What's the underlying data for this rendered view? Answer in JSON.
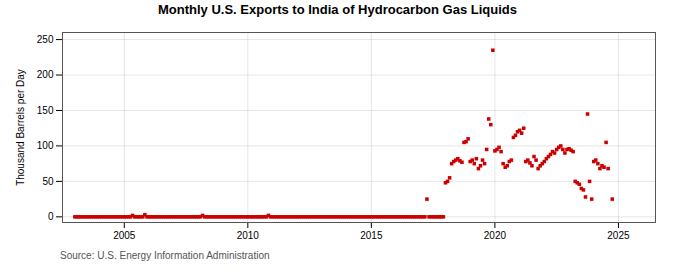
{
  "chart_data": {
    "type": "scatter",
    "title": "Monthly U.S. Exports to India of Hydrocarbon Gas Liquids",
    "ylabel": "Thousand Barrels per Day",
    "annotations": [
      "Source: U.S. Energy Information Administration"
    ],
    "color": "#cc0000",
    "marker": "square",
    "grid": true,
    "xlim": [
      2002.5,
      2026.5
    ],
    "xticks": [
      2005,
      2010,
      2015,
      2020,
      2025
    ],
    "ylim": [
      -8,
      260
    ],
    "yticks": [
      0,
      50,
      100,
      150,
      200,
      250
    ],
    "x": [
      2003.0,
      2003.083,
      2003.167,
      2003.25,
      2003.333,
      2003.417,
      2003.5,
      2003.583,
      2003.667,
      2003.75,
      2003.833,
      2003.917,
      2004.0,
      2004.083,
      2004.167,
      2004.25,
      2004.333,
      2004.417,
      2004.5,
      2004.583,
      2004.667,
      2004.75,
      2004.833,
      2004.917,
      2005.0,
      2005.083,
      2005.167,
      2005.25,
      2005.333,
      2005.417,
      2005.5,
      2005.583,
      2005.667,
      2005.75,
      2005.833,
      2005.917,
      2006.0,
      2006.083,
      2006.167,
      2006.25,
      2006.333,
      2006.417,
      2006.5,
      2006.583,
      2006.667,
      2006.75,
      2006.833,
      2006.917,
      2007.0,
      2007.083,
      2007.167,
      2007.25,
      2007.333,
      2007.417,
      2007.5,
      2007.583,
      2007.667,
      2007.75,
      2007.833,
      2007.917,
      2008.0,
      2008.083,
      2008.167,
      2008.25,
      2008.333,
      2008.417,
      2008.5,
      2008.583,
      2008.667,
      2008.75,
      2008.833,
      2008.917,
      2009.0,
      2009.083,
      2009.167,
      2009.25,
      2009.333,
      2009.417,
      2009.5,
      2009.583,
      2009.667,
      2009.75,
      2009.833,
      2009.917,
      2010.0,
      2010.083,
      2010.167,
      2010.25,
      2010.333,
      2010.417,
      2010.5,
      2010.583,
      2010.667,
      2010.75,
      2010.833,
      2010.917,
      2011.0,
      2011.083,
      2011.167,
      2011.25,
      2011.333,
      2011.417,
      2011.5,
      2011.583,
      2011.667,
      2011.75,
      2011.833,
      2011.917,
      2012.0,
      2012.083,
      2012.167,
      2012.25,
      2012.333,
      2012.417,
      2012.5,
      2012.583,
      2012.667,
      2012.75,
      2012.833,
      2012.917,
      2013.0,
      2013.083,
      2013.167,
      2013.25,
      2013.333,
      2013.417,
      2013.5,
      2013.583,
      2013.667,
      2013.75,
      2013.833,
      2013.917,
      2014.0,
      2014.083,
      2014.167,
      2014.25,
      2014.333,
      2014.417,
      2014.5,
      2014.583,
      2014.667,
      2014.75,
      2014.833,
      2014.917,
      2015.0,
      2015.083,
      2015.167,
      2015.25,
      2015.333,
      2015.417,
      2015.5,
      2015.583,
      2015.667,
      2015.75,
      2015.833,
      2015.917,
      2016.0,
      2016.083,
      2016.167,
      2016.25,
      2016.333,
      2016.417,
      2016.5,
      2016.583,
      2016.667,
      2016.75,
      2016.833,
      2016.917,
      2017.0,
      2017.083,
      2017.167,
      2017.25,
      2017.333,
      2017.417,
      2017.5,
      2017.583,
      2017.667,
      2017.75,
      2017.833,
      2017.917,
      2018.0,
      2018.083,
      2018.167,
      2018.25,
      2018.333,
      2018.417,
      2018.5,
      2018.583,
      2018.667,
      2018.75,
      2018.833,
      2018.917,
      2019.0,
      2019.083,
      2019.167,
      2019.25,
      2019.333,
      2019.417,
      2019.5,
      2019.583,
      2019.667,
      2019.75,
      2019.833,
      2019.917,
      2020.0,
      2020.083,
      2020.167,
      2020.25,
      2020.333,
      2020.417,
      2020.5,
      2020.583,
      2020.667,
      2020.75,
      2020.833,
      2020.917,
      2021.0,
      2021.083,
      2021.167,
      2021.25,
      2021.333,
      2021.417,
      2021.5,
      2021.583,
      2021.667,
      2021.75,
      2021.833,
      2021.917,
      2022.0,
      2022.083,
      2022.167,
      2022.25,
      2022.333,
      2022.417,
      2022.5,
      2022.583,
      2022.667,
      2022.75,
      2022.833,
      2022.917,
      2023.0,
      2023.083,
      2023.167,
      2023.25,
      2023.333,
      2023.417,
      2023.5,
      2023.583,
      2023.667,
      2023.75,
      2023.833,
      2023.917,
      2024.0,
      2024.083,
      2024.167,
      2024.25,
      2024.333,
      2024.417,
      2024.5,
      2024.583,
      2024.75
    ],
    "values": [
      0,
      0,
      0,
      0,
      0,
      0,
      0,
      0,
      0,
      0,
      0,
      0,
      0,
      0,
      0,
      0,
      0,
      0,
      0,
      0,
      0,
      0,
      0,
      0,
      0,
      0,
      0,
      0,
      2,
      0,
      0,
      0,
      0,
      0,
      3,
      0,
      0,
      0,
      0,
      0,
      0,
      0,
      0,
      0,
      0,
      0,
      0,
      0,
      0,
      0,
      0,
      0,
      0,
      0,
      0,
      0,
      0,
      0,
      0,
      0,
      0,
      0,
      2,
      0,
      0,
      0,
      0,
      0,
      0,
      0,
      0,
      0,
      0,
      0,
      0,
      0,
      0,
      0,
      0,
      0,
      0,
      0,
      0,
      0,
      0,
      0,
      0,
      0,
      0,
      0,
      0,
      0,
      0,
      0,
      2,
      0,
      0,
      0,
      0,
      0,
      0,
      0,
      0,
      0,
      0,
      0,
      0,
      0,
      0,
      0,
      0,
      0,
      0,
      0,
      0,
      0,
      0,
      0,
      0,
      0,
      0,
      0,
      0,
      0,
      0,
      0,
      0,
      0,
      0,
      0,
      0,
      0,
      0,
      0,
      0,
      0,
      0,
      0,
      0,
      0,
      0,
      0,
      0,
      0,
      0,
      0,
      0,
      0,
      0,
      0,
      0,
      0,
      0,
      0,
      0,
      0,
      0,
      0,
      0,
      0,
      0,
      0,
      0,
      0,
      0,
      0,
      0,
      0,
      0,
      0,
      0,
      25,
      0,
      0,
      0,
      0,
      0,
      0,
      0,
      0,
      48,
      50,
      55,
      75,
      78,
      80,
      82,
      79,
      77,
      105,
      106,
      110,
      78,
      80,
      75,
      82,
      68,
      72,
      80,
      75,
      95,
      138,
      130,
      235,
      93,
      95,
      98,
      92,
      75,
      70,
      72,
      78,
      80,
      112,
      115,
      120,
      122,
      118,
      125,
      78,
      80,
      76,
      72,
      85,
      80,
      68,
      72,
      75,
      78,
      82,
      85,
      88,
      92,
      90,
      95,
      98,
      100,
      95,
      90,
      95,
      96,
      94,
      92,
      50,
      48,
      46,
      40,
      38,
      28,
      145,
      50,
      25,
      78,
      80,
      75,
      68,
      72,
      70,
      105,
      68,
      25
    ]
  }
}
